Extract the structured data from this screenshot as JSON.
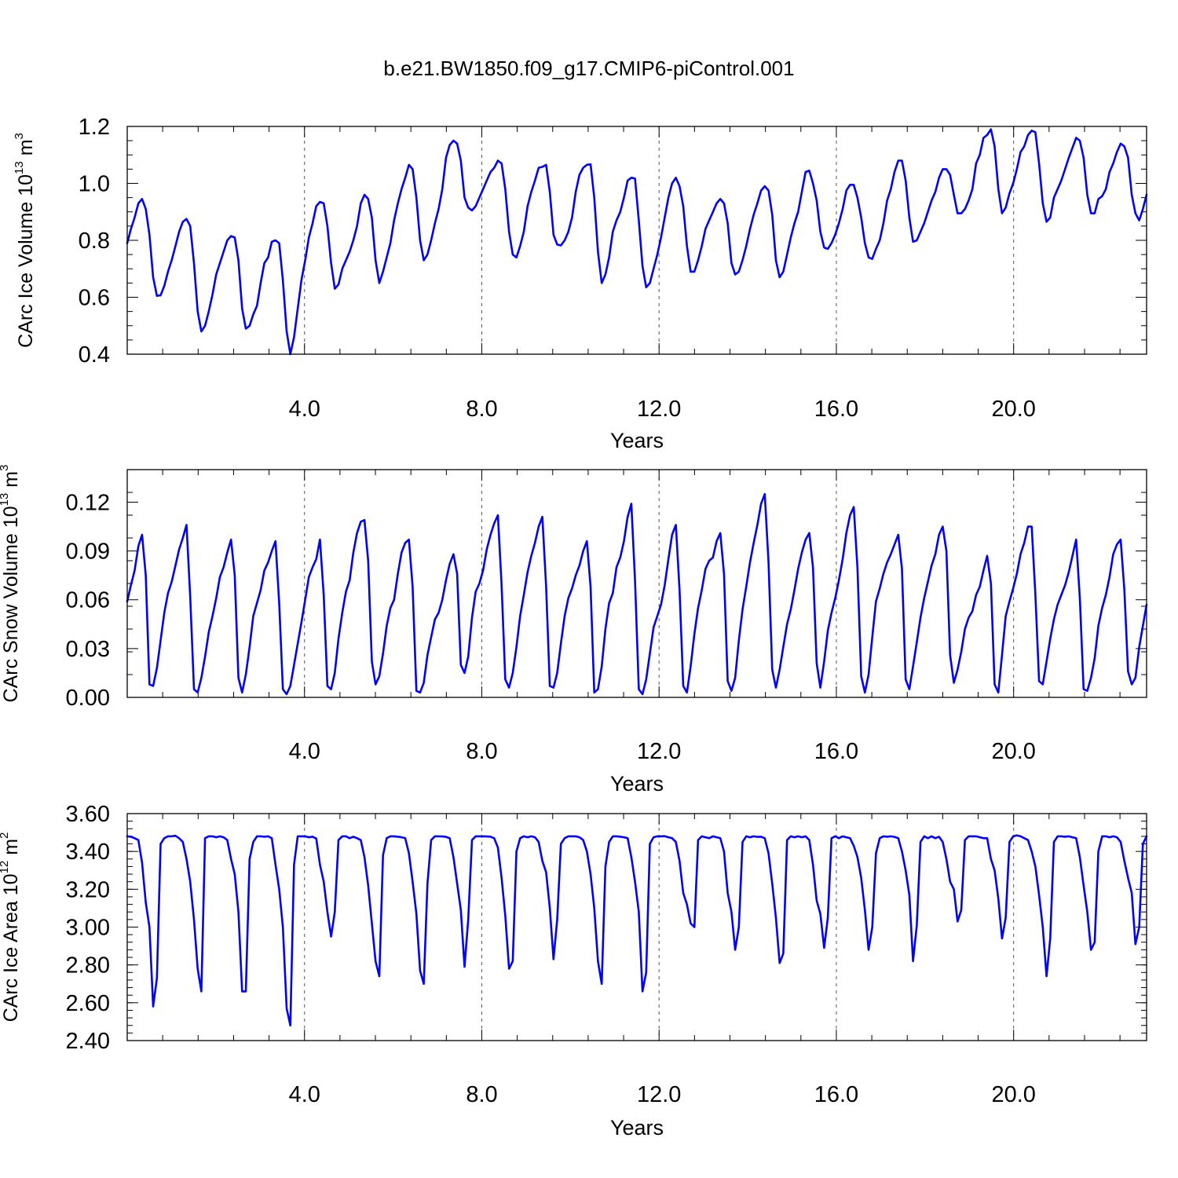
{
  "chart_data": [
    {
      "type": "line",
      "title": "b.e21.BW1850.f09_g17.CMIP6-piControl.001",
      "xlabel": "Years",
      "ylabel": {
        "text": "CArc Ice Volume 10",
        "exp": "13",
        "unit": " m",
        "unit_exp": "3"
      },
      "xlim": [
        0,
        23
      ],
      "ylim": [
        0.4,
        1.2
      ],
      "xticks": [
        4,
        8,
        12,
        16,
        20
      ],
      "xtick_labels": [
        "4.0",
        "8.0",
        "12.0",
        "16.0",
        "20.0"
      ],
      "yticks": [
        0.4,
        0.6,
        0.8,
        1.0,
        1.2
      ],
      "ytick_labels": [
        "0.4",
        "0.6",
        "0.8",
        "1.0",
        "1.2"
      ],
      "grid": "vertical dashed at major x ticks",
      "color": "#0000ff",
      "annual_cycles": [
        [
          0.79,
          0.84,
          0.88,
          0.93,
          0.945,
          0.91,
          0.82,
          0.67,
          0.605,
          0.607,
          0.64,
          0.69
        ],
        [
          0.73,
          0.78,
          0.83,
          0.865,
          0.875,
          0.85,
          0.72,
          0.55,
          0.48,
          0.5,
          0.55,
          0.61
        ],
        [
          0.68,
          0.72,
          0.76,
          0.8,
          0.815,
          0.81,
          0.73,
          0.56,
          0.49,
          0.5,
          0.54,
          0.57
        ],
        [
          0.65,
          0.72,
          0.74,
          0.795,
          0.8,
          0.79,
          0.66,
          0.48,
          0.4,
          0.46,
          0.56,
          0.66
        ],
        [
          0.73,
          0.81,
          0.86,
          0.92,
          0.935,
          0.93,
          0.85,
          0.72,
          0.63,
          0.645,
          0.7,
          0.73
        ],
        [
          0.76,
          0.8,
          0.85,
          0.93,
          0.96,
          0.945,
          0.88,
          0.73,
          0.65,
          0.69,
          0.74,
          0.79
        ],
        [
          0.87,
          0.93,
          0.98,
          1.02,
          1.065,
          1.05,
          0.95,
          0.8,
          0.73,
          0.75,
          0.8,
          0.86
        ],
        [
          0.91,
          0.98,
          1.09,
          1.135,
          1.15,
          1.14,
          1.08,
          0.95,
          0.915,
          0.905,
          0.92,
          0.95
        ],
        [
          0.98,
          1.01,
          1.04,
          1.055,
          1.08,
          1.07,
          0.98,
          0.83,
          0.75,
          0.74,
          0.78,
          0.83
        ],
        [
          0.92,
          0.97,
          1.01,
          1.055,
          1.058,
          1.065,
          0.97,
          0.82,
          0.785,
          0.782,
          0.8,
          0.83
        ],
        [
          0.88,
          0.97,
          1.03,
          1.055,
          1.065,
          1.067,
          0.95,
          0.76,
          0.65,
          0.68,
          0.74,
          0.83
        ],
        [
          0.87,
          0.9,
          0.95,
          1.01,
          1.02,
          1.017,
          0.87,
          0.71,
          0.635,
          0.65,
          0.7,
          0.75
        ],
        [
          0.81,
          0.88,
          0.95,
          1.0,
          1.02,
          0.99,
          0.92,
          0.78,
          0.69,
          0.69,
          0.73,
          0.78
        ],
        [
          0.84,
          0.87,
          0.9,
          0.93,
          0.945,
          0.93,
          0.86,
          0.72,
          0.68,
          0.69,
          0.73,
          0.78
        ],
        [
          0.84,
          0.89,
          0.93,
          0.975,
          0.99,
          0.975,
          0.89,
          0.73,
          0.67,
          0.69,
          0.75,
          0.81
        ],
        [
          0.86,
          0.9,
          0.97,
          1.04,
          1.045,
          1.0,
          0.94,
          0.83,
          0.775,
          0.77,
          0.79,
          0.82
        ],
        [
          0.86,
          0.91,
          0.975,
          0.995,
          0.995,
          0.95,
          0.88,
          0.79,
          0.74,
          0.735,
          0.77,
          0.8
        ],
        [
          0.86,
          0.94,
          0.98,
          1.04,
          1.08,
          1.08,
          1.01,
          0.88,
          0.795,
          0.8,
          0.83,
          0.86
        ],
        [
          0.9,
          0.94,
          0.97,
          1.02,
          1.05,
          1.05,
          1.03,
          0.96,
          0.895,
          0.895,
          0.91,
          0.94
        ],
        [
          0.98,
          1.07,
          1.1,
          1.16,
          1.17,
          1.19,
          1.13,
          0.98,
          0.895,
          0.915,
          0.965,
          1.0
        ],
        [
          1.05,
          1.11,
          1.13,
          1.17,
          1.185,
          1.18,
          1.07,
          0.93,
          0.865,
          0.88,
          0.95,
          0.98
        ],
        [
          1.01,
          1.05,
          1.09,
          1.125,
          1.16,
          1.15,
          1.09,
          0.96,
          0.895,
          0.895,
          0.945,
          0.955
        ],
        [
          0.98,
          1.04,
          1.07,
          1.11,
          1.14,
          1.13,
          1.09,
          0.96,
          0.895,
          0.87,
          0.91,
          0.96
        ]
      ]
    },
    {
      "type": "line",
      "xlabel": "Years",
      "ylabel": {
        "text": "CArc Snow Volume 10",
        "exp": "13",
        "unit": " m",
        "unit_exp": "3"
      },
      "xlim": [
        0,
        23
      ],
      "ylim": [
        0.0,
        0.14
      ],
      "xticks": [
        4,
        8,
        12,
        16,
        20
      ],
      "xtick_labels": [
        "4.0",
        "8.0",
        "12.0",
        "16.0",
        "20.0"
      ],
      "yticks": [
        0.0,
        0.03,
        0.06,
        0.09,
        0.12
      ],
      "ytick_labels": [
        "0.00",
        "0.03",
        "0.06",
        "0.09",
        "0.12"
      ],
      "grid": "vertical dashed at major x ticks",
      "color": "#0000ff",
      "annual_cycles": [
        [
          0.059,
          0.069,
          0.078,
          0.093,
          0.1,
          0.075,
          0.008,
          0.007,
          0.018,
          0.035,
          0.052,
          0.064
        ],
        [
          0.071,
          0.081,
          0.091,
          0.098,
          0.106,
          0.062,
          0.005,
          0.003,
          0.012,
          0.025,
          0.04,
          0.05
        ],
        [
          0.061,
          0.074,
          0.08,
          0.089,
          0.097,
          0.075,
          0.012,
          0.003,
          0.014,
          0.031,
          0.05,
          0.058
        ],
        [
          0.066,
          0.078,
          0.083,
          0.09,
          0.096,
          0.058,
          0.005,
          0.002,
          0.007,
          0.02,
          0.033,
          0.046
        ],
        [
          0.06,
          0.074,
          0.08,
          0.085,
          0.097,
          0.063,
          0.007,
          0.005,
          0.015,
          0.036,
          0.052,
          0.065
        ],
        [
          0.072,
          0.089,
          0.101,
          0.108,
          0.109,
          0.084,
          0.022,
          0.008,
          0.013,
          0.027,
          0.044,
          0.055
        ],
        [
          0.06,
          0.076,
          0.089,
          0.095,
          0.097,
          0.068,
          0.004,
          0.003,
          0.009,
          0.026,
          0.037,
          0.048
        ],
        [
          0.052,
          0.06,
          0.072,
          0.082,
          0.088,
          0.076,
          0.02,
          0.015,
          0.025,
          0.049,
          0.065,
          0.07
        ],
        [
          0.078,
          0.091,
          0.1,
          0.107,
          0.112,
          0.069,
          0.011,
          0.006,
          0.015,
          0.031,
          0.05,
          0.063
        ],
        [
          0.077,
          0.087,
          0.095,
          0.105,
          0.111,
          0.068,
          0.007,
          0.006,
          0.015,
          0.033,
          0.05,
          0.061
        ],
        [
          0.067,
          0.075,
          0.081,
          0.09,
          0.096,
          0.068,
          0.003,
          0.005,
          0.019,
          0.042,
          0.058,
          0.064
        ],
        [
          0.08,
          0.086,
          0.096,
          0.111,
          0.119,
          0.072,
          0.005,
          0.002,
          0.011,
          0.027,
          0.043,
          0.05
        ],
        [
          0.057,
          0.069,
          0.085,
          0.1,
          0.106,
          0.066,
          0.007,
          0.003,
          0.019,
          0.039,
          0.055,
          0.066
        ],
        [
          0.079,
          0.084,
          0.086,
          0.096,
          0.101,
          0.076,
          0.01,
          0.004,
          0.012,
          0.035,
          0.054,
          0.068
        ],
        [
          0.083,
          0.095,
          0.106,
          0.119,
          0.125,
          0.083,
          0.017,
          0.006,
          0.017,
          0.031,
          0.045,
          0.054
        ],
        [
          0.066,
          0.079,
          0.089,
          0.097,
          0.101,
          0.08,
          0.021,
          0.006,
          0.022,
          0.041,
          0.052,
          0.061
        ],
        [
          0.072,
          0.085,
          0.101,
          0.112,
          0.117,
          0.08,
          0.013,
          0.003,
          0.014,
          0.037,
          0.059,
          0.067
        ],
        [
          0.076,
          0.083,
          0.088,
          0.094,
          0.1,
          0.079,
          0.011,
          0.005,
          0.019,
          0.034,
          0.049,
          0.061
        ],
        [
          0.071,
          0.081,
          0.088,
          0.1,
          0.105,
          0.09,
          0.026,
          0.009,
          0.017,
          0.028,
          0.042,
          0.049
        ],
        [
          0.053,
          0.063,
          0.068,
          0.078,
          0.087,
          0.07,
          0.008,
          0.003,
          0.026,
          0.05,
          0.059,
          0.067
        ],
        [
          0.076,
          0.088,
          0.095,
          0.105,
          0.105,
          0.063,
          0.01,
          0.008,
          0.022,
          0.036,
          0.048,
          0.057
        ],
        [
          0.063,
          0.069,
          0.077,
          0.087,
          0.097,
          0.061,
          0.005,
          0.004,
          0.012,
          0.024,
          0.044,
          0.055
        ],
        [
          0.063,
          0.074,
          0.088,
          0.094,
          0.097,
          0.066,
          0.016,
          0.008,
          0.012,
          0.031,
          0.044,
          0.057
        ]
      ]
    },
    {
      "type": "line",
      "xlabel": "Years",
      "ylabel": {
        "text": "CArc Ice Area 10",
        "exp": "12",
        "unit": " m",
        "unit_exp": "2"
      },
      "xlim": [
        0,
        23
      ],
      "ylim": [
        2.4,
        3.6
      ],
      "xticks": [
        4,
        8,
        12,
        16,
        20
      ],
      "xtick_labels": [
        "4.0",
        "8.0",
        "12.0",
        "16.0",
        "20.0"
      ],
      "yticks": [
        2.4,
        2.6,
        2.8,
        3.0,
        3.2,
        3.4,
        3.6
      ],
      "ytick_labels": [
        "2.40",
        "2.60",
        "2.80",
        "3.00",
        "3.20",
        "3.40",
        "3.60"
      ],
      "grid": "vertical dashed at major x ticks",
      "color": "#0000ff",
      "annual_cycles": [
        [
          3.48,
          3.478,
          3.47,
          3.46,
          3.34,
          3.13,
          3.0,
          2.58,
          2.73,
          3.44,
          3.47,
          3.48
        ],
        [
          3.48,
          3.483,
          3.47,
          3.45,
          3.36,
          3.24,
          3.04,
          2.78,
          2.66,
          3.47,
          3.48,
          3.48
        ],
        [
          3.475,
          3.48,
          3.475,
          3.46,
          3.36,
          3.28,
          3.08,
          2.66,
          2.66,
          3.36,
          3.45,
          3.48
        ],
        [
          3.48,
          3.478,
          3.48,
          3.47,
          3.33,
          3.2,
          3.0,
          2.57,
          2.48,
          3.33,
          3.48,
          3.48
        ],
        [
          3.48,
          3.475,
          3.478,
          3.468,
          3.33,
          3.24,
          3.08,
          2.95,
          3.08,
          3.46,
          3.48,
          3.48
        ],
        [
          3.47,
          3.478,
          3.47,
          3.46,
          3.37,
          3.22,
          3.02,
          2.82,
          2.74,
          3.38,
          3.47,
          3.48
        ],
        [
          3.48,
          3.478,
          3.475,
          3.47,
          3.39,
          3.24,
          3.07,
          2.77,
          2.7,
          3.23,
          3.46,
          3.48
        ],
        [
          3.48,
          3.479,
          3.477,
          3.47,
          3.37,
          3.23,
          3.09,
          2.79,
          3.04,
          3.46,
          3.48,
          3.48
        ],
        [
          3.48,
          3.479,
          3.478,
          3.47,
          3.42,
          3.26,
          3.06,
          2.78,
          2.82,
          3.4,
          3.47,
          3.48
        ],
        [
          3.475,
          3.48,
          3.475,
          3.45,
          3.35,
          3.29,
          3.1,
          2.83,
          3.04,
          3.44,
          3.47,
          3.48
        ],
        [
          3.48,
          3.48,
          3.475,
          3.46,
          3.4,
          3.28,
          3.1,
          2.82,
          2.7,
          3.32,
          3.45,
          3.48
        ],
        [
          3.48,
          3.478,
          3.475,
          3.47,
          3.37,
          3.24,
          3.08,
          2.66,
          2.76,
          3.44,
          3.475,
          3.48
        ],
        [
          3.48,
          3.481,
          3.475,
          3.47,
          3.45,
          3.35,
          3.18,
          3.12,
          3.02,
          3.0,
          3.46,
          3.48
        ],
        [
          3.475,
          3.47,
          3.48,
          3.475,
          3.47,
          3.4,
          3.18,
          3.08,
          2.88,
          3.0,
          3.45,
          3.48
        ],
        [
          3.475,
          3.48,
          3.477,
          3.478,
          3.47,
          3.39,
          3.23,
          3.05,
          2.81,
          2.86,
          3.46,
          3.48
        ],
        [
          3.475,
          3.48,
          3.475,
          3.48,
          3.46,
          3.33,
          3.14,
          3.07,
          2.89,
          3.05,
          3.47,
          3.48
        ],
        [
          3.47,
          3.48,
          3.475,
          3.47,
          3.43,
          3.37,
          3.26,
          3.09,
          2.88,
          3.0,
          3.39,
          3.47
        ],
        [
          3.48,
          3.478,
          3.48,
          3.477,
          3.47,
          3.4,
          3.3,
          3.17,
          2.82,
          3.01,
          3.45,
          3.48
        ],
        [
          3.47,
          3.48,
          3.47,
          3.478,
          3.45,
          3.36,
          3.24,
          3.2,
          3.03,
          3.09,
          3.46,
          3.48
        ],
        [
          3.48,
          3.48,
          3.475,
          3.47,
          3.47,
          3.36,
          3.3,
          3.15,
          2.94,
          3.05,
          3.45,
          3.48
        ],
        [
          3.485,
          3.48,
          3.47,
          3.46,
          3.4,
          3.32,
          3.17,
          3.0,
          2.74,
          2.94,
          3.45,
          3.48
        ],
        [
          3.48,
          3.478,
          3.48,
          3.475,
          3.47,
          3.37,
          3.22,
          3.08,
          2.88,
          2.92,
          3.4,
          3.48
        ],
        [
          3.48,
          3.475,
          3.48,
          3.475,
          3.45,
          3.35,
          3.26,
          3.18,
          2.91,
          3.0,
          3.44,
          3.48
        ]
      ]
    }
  ]
}
